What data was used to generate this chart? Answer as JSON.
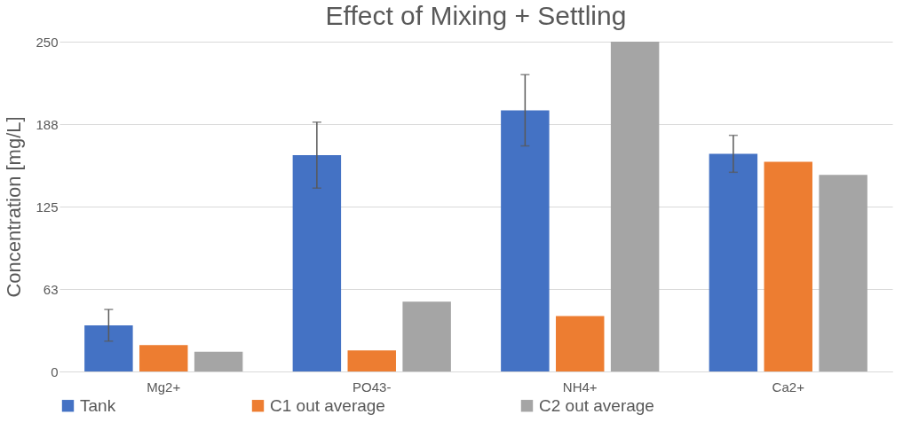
{
  "chart_data": {
    "type": "bar",
    "title": "Effect of Mixing + Settling",
    "ylabel": "Concentration [mg/L]",
    "categories": [
      "Mg2+",
      "PO43-",
      "NH4+",
      "Ca2+"
    ],
    "series": [
      {
        "name": "Tank",
        "color": "#4472c4",
        "values": [
          35,
          164,
          198,
          165
        ],
        "errors": [
          12,
          25,
          27,
          14
        ]
      },
      {
        "name": "C1 out average",
        "color": "#ed7d31",
        "values": [
          20,
          16,
          42,
          159
        ]
      },
      {
        "name": "C2 out average",
        "color": "#a5a5a5",
        "values": [
          15,
          53,
          250,
          149
        ]
      }
    ],
    "ylim": [
      0,
      250
    ],
    "yticks": [
      0,
      {
        "value": 62.5,
        "label": "63"
      },
      125,
      {
        "value": 187.5,
        "label": "188"
      },
      250
    ],
    "grid": "y",
    "legend": "bottom"
  }
}
